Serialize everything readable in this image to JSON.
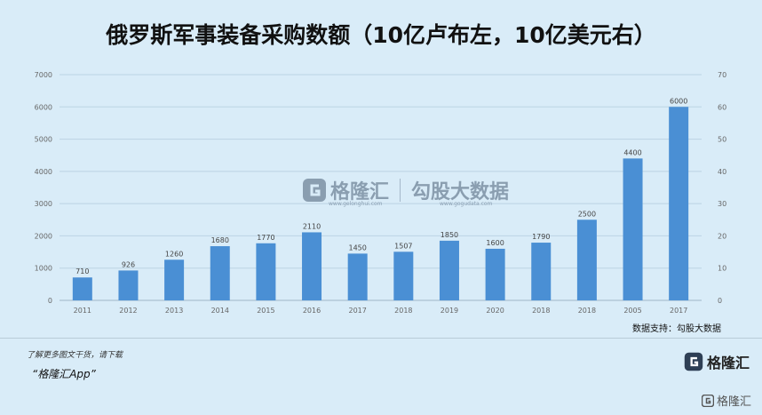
{
  "chart_data": {
    "type": "bar",
    "title": "俄罗斯军事装备采购数额（10亿卢布左，10亿美元右）",
    "categories": [
      "2011",
      "2012",
      "2013",
      "2014",
      "2015",
      "2016",
      "2017",
      "2018",
      "2019",
      "2020",
      "2018",
      "2018",
      "2005",
      "2017"
    ],
    "data_labels": [
      "710",
      "926",
      "1260",
      "1680",
      "1770",
      "2110",
      "1450",
      "1507",
      "1850",
      "1600",
      "1790",
      "2500",
      "4400",
      "6000"
    ],
    "values": [
      710,
      926,
      1260,
      1680,
      1770,
      2110,
      1450,
      1507,
      1850,
      1600,
      1790,
      2500,
      4400,
      6000
    ],
    "ylim": [
      0,
      7000
    ],
    "y_ticks": [
      "0",
      "1000",
      "2000",
      "3000",
      "4000",
      "5000",
      "6000",
      "7000"
    ],
    "y2lim": [
      0,
      70
    ],
    "y2_ticks": [
      "0",
      "10",
      "20",
      "30",
      "40",
      "50",
      "60",
      "70"
    ],
    "bar_color": "#4a8fd4",
    "grid": true
  },
  "source_note": "数据支持：勾股大数据",
  "watermark": {
    "brand": "格隆汇",
    "brand_url": "www.gelonghui.com",
    "partner": "勾股大数据",
    "partner_url": "www.gogudata.com"
  },
  "footer": {
    "text": "了解更多图文干货，请下载",
    "app": "“格隆汇App”",
    "logo_text": "格隆汇"
  },
  "corner_mark": "格隆汇"
}
